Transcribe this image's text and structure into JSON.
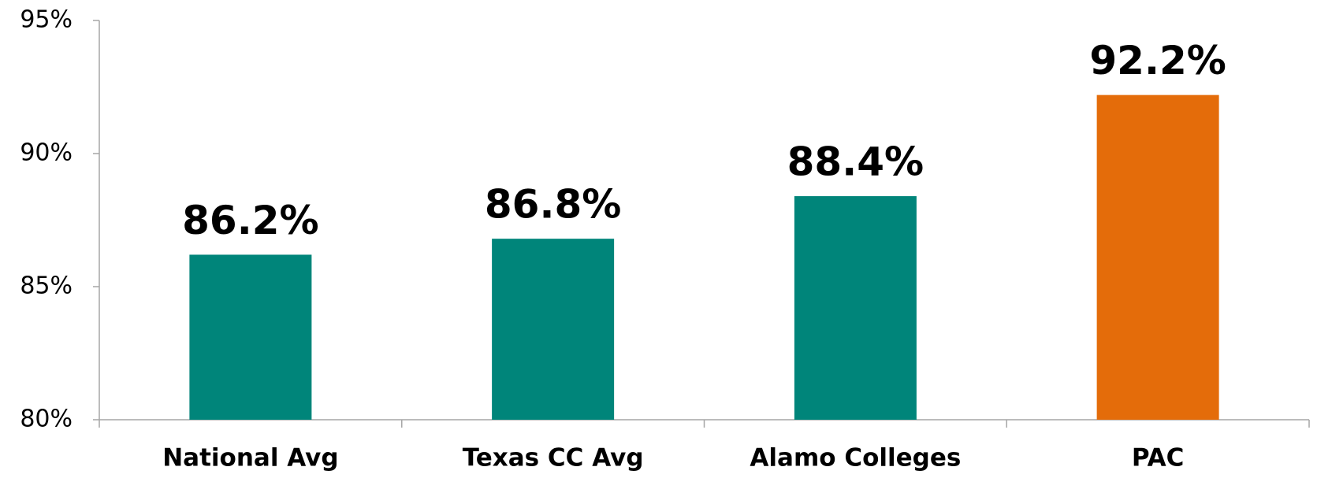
{
  "chart_data": {
    "type": "bar",
    "categories": [
      "National Avg",
      "Texas CC Avg",
      "Alamo Colleges",
      "PAC"
    ],
    "values": [
      86.2,
      86.8,
      88.4,
      92.2
    ],
    "value_labels": [
      "86.2%",
      "86.8%",
      "88.4%",
      "92.2%"
    ],
    "colors": [
      "#00857a",
      "#00857a",
      "#00857a",
      "#e46c0a"
    ],
    "ylim": [
      80,
      95
    ],
    "yticks": [
      {
        "value": 80,
        "label": "80%"
      },
      {
        "value": 85,
        "label": "85%"
      },
      {
        "value": 90,
        "label": "90%"
      },
      {
        "value": 95,
        "label": "95%"
      }
    ],
    "grid": false
  }
}
